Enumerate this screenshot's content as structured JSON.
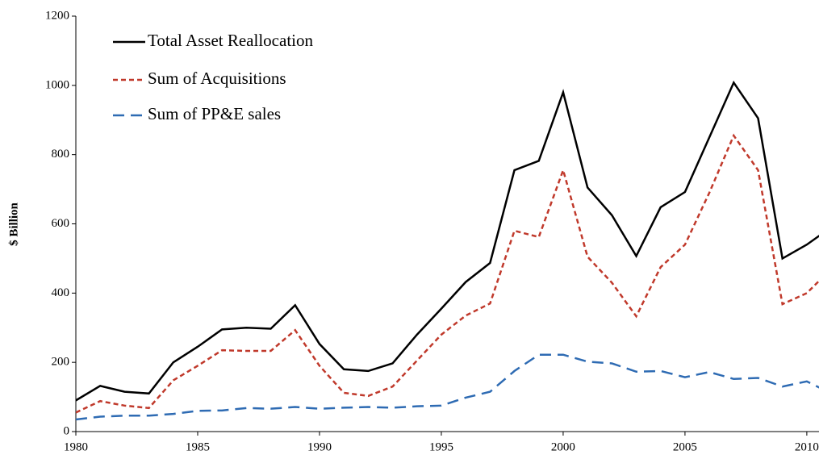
{
  "chart_data": {
    "type": "line",
    "y_label": "$ Billion",
    "x": [
      1980,
      1981,
      1982,
      1983,
      1984,
      1985,
      1986,
      1987,
      1988,
      1989,
      1990,
      1991,
      1992,
      1993,
      1994,
      1995,
      1996,
      1997,
      1998,
      1999,
      2000,
      2001,
      2002,
      2003,
      2004,
      2005,
      2006,
      2007,
      2008,
      2009,
      2010,
      2011
    ],
    "series": [
      {
        "name": "Total Asset Reallocation",
        "color": "#000000",
        "dash": "solid",
        "values": [
          90,
          132,
          115,
          110,
          200,
          245,
          295,
          300,
          297,
          365,
          253,
          180,
          175,
          197,
          280,
          355,
          432,
          487,
          755,
          782,
          980,
          705,
          625,
          507,
          648,
          692,
          850,
          1008,
          905,
          500,
          540,
          590
        ]
      },
      {
        "name": "Sum of Acquisitions",
        "color": "#c0392b",
        "dash": "short",
        "values": [
          55,
          88,
          75,
          68,
          148,
          190,
          235,
          233,
          233,
          293,
          190,
          112,
          103,
          130,
          205,
          280,
          335,
          370,
          580,
          562,
          755,
          505,
          430,
          333,
          475,
          540,
          690,
          855,
          755,
          368,
          400,
          470
        ]
      },
      {
        "name": "Sum of PP&E sales",
        "color": "#2e6bb3",
        "dash": "long",
        "values": [
          35,
          43,
          46,
          46,
          51,
          60,
          61,
          68,
          66,
          71,
          66,
          69,
          71,
          69,
          73,
          75,
          98,
          115,
          175,
          222,
          222,
          202,
          197,
          173,
          175,
          157,
          172,
          152,
          155,
          130,
          145,
          110
        ]
      }
    ],
    "xlim": [
      1980,
      2010.5
    ],
    "xticks": [
      1980,
      1985,
      1990,
      1995,
      2000,
      2005,
      2010
    ],
    "ylim": [
      0,
      1200
    ],
    "yticks": [
      0,
      200,
      400,
      600,
      800,
      1000,
      1200
    ],
    "legend": "upper left"
  }
}
